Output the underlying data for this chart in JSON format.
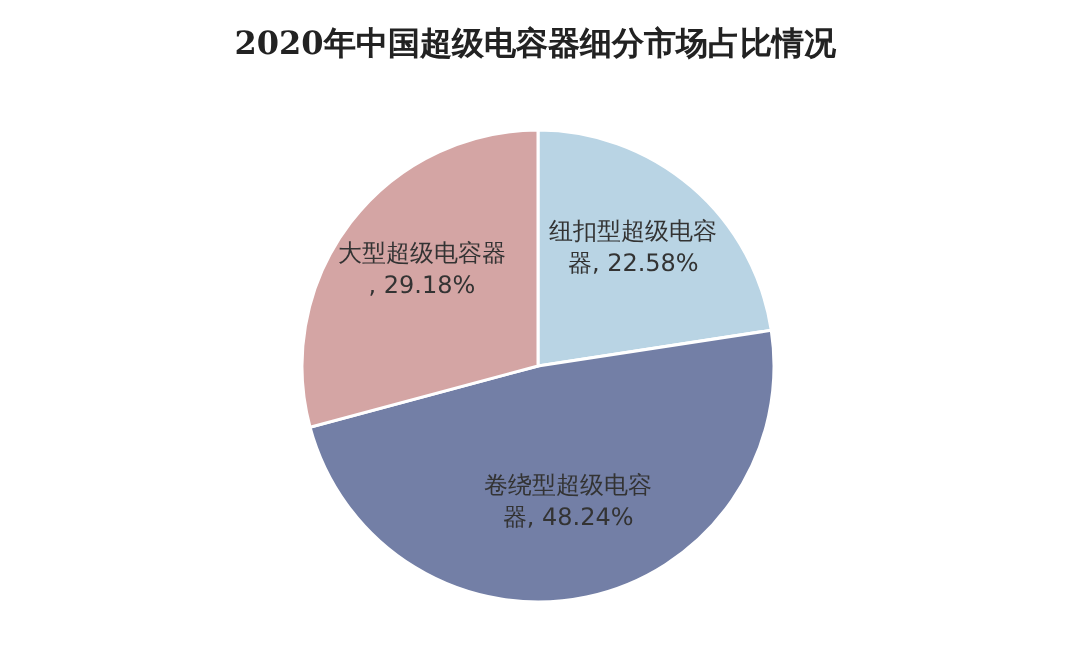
{
  "chart_data": {
    "type": "pie",
    "title": "2020年中国超级电容器细分市场占比情况",
    "categories": [
      "纽扣型超级电容器",
      "卷绕型超级电容器",
      "大型超级电容器"
    ],
    "values": [
      22.58,
      48.24,
      29.18
    ],
    "value_labels": [
      ", 22.58%",
      ", 48.24%",
      ", 29.18%"
    ],
    "colors": [
      "#b9d4e4",
      "#737fa6",
      "#d4a5a4"
    ],
    "legend": false
  }
}
